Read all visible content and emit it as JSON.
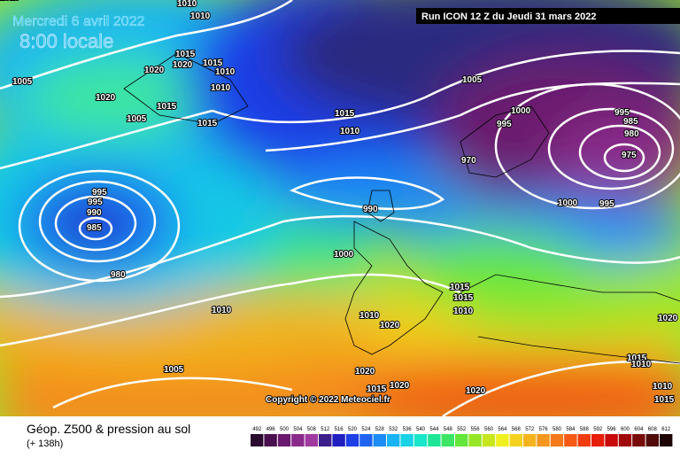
{
  "header": {
    "date": "Mercredi 6 avril 2022",
    "time": "8:00 locale",
    "run": "Run ICON 12 Z du Jeudi 31 mars 2022",
    "copyright": "Copyright © 2022 Meteociel.fr"
  },
  "footer": {
    "title": "Géop. Z500 & pression au sol",
    "lead": "(+ 138h)"
  },
  "isobar_labels": [
    "1010",
    "1010",
    "1015",
    "1020",
    "1020",
    "1015",
    "1010",
    "1010",
    "1005",
    "1020",
    "1015",
    "1005",
    "1015",
    "1015",
    "1010",
    "1005",
    "1000",
    "995",
    "995",
    "985",
    "980",
    "975",
    "970",
    "1000",
    "995",
    "990",
    "995",
    "995",
    "990",
    "985",
    "980",
    "1000",
    "1010",
    "1015",
    "1015",
    "1010",
    "1010",
    "1020",
    "1020",
    "1005",
    "1020",
    "1015",
    "1010",
    "1010",
    "1015",
    "1015",
    "1020",
    "1020",
    "1010"
  ],
  "colorbar": {
    "values": [
      492,
      496,
      500,
      504,
      508,
      512,
      516,
      520,
      524,
      528,
      532,
      536,
      540,
      544,
      548,
      552,
      556,
      560,
      564,
      568,
      572,
      576,
      580,
      584,
      588,
      592,
      596,
      600,
      604,
      608,
      612
    ],
    "colors": [
      "#2a0a2e",
      "#4a0f4f",
      "#6a1a6e",
      "#8a2a8a",
      "#a03aa0",
      "#3c1f8a",
      "#2020c0",
      "#1e3ee6",
      "#1e64f0",
      "#1e8cf5",
      "#19b4f5",
      "#19d2e6",
      "#19e6c8",
      "#1ee696",
      "#3ce664",
      "#64e63c",
      "#96e628",
      "#c8e61e",
      "#f0f01e",
      "#f5d21e",
      "#f5b41e",
      "#f5961e",
      "#f57819",
      "#f55a14",
      "#f03c0f",
      "#e61e0a",
      "#c80a0a",
      "#a00a0a",
      "#780a0a",
      "#500a0a",
      "#1e0505"
    ]
  }
}
